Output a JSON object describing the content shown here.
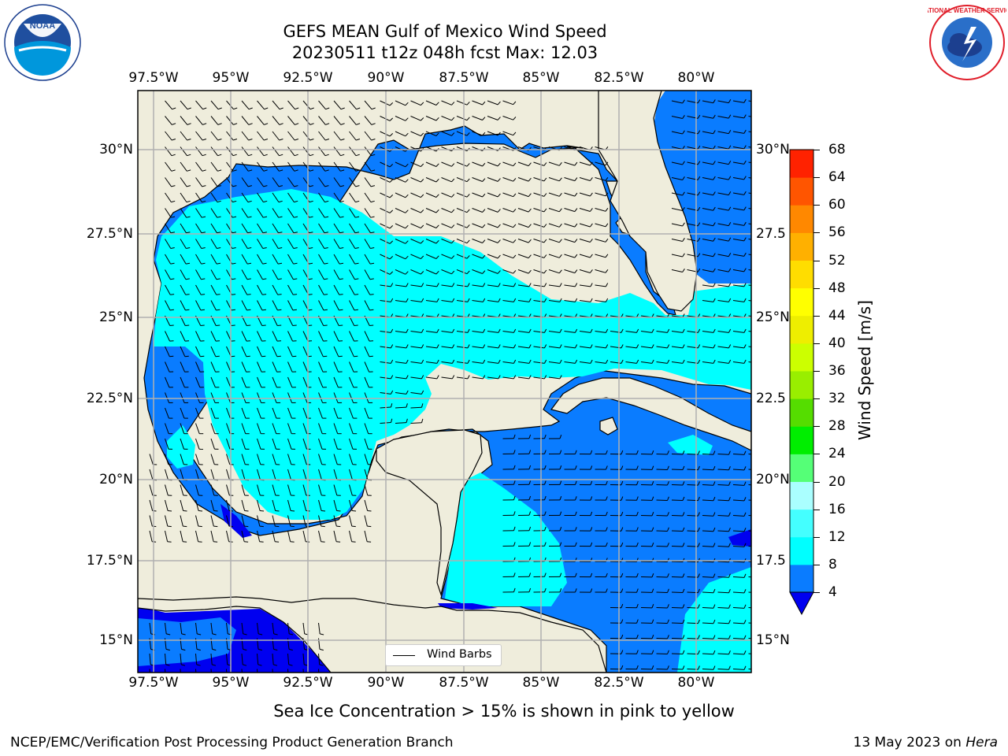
{
  "title": {
    "line1": "GEFS MEAN Gulf of Mexico Wind Speed",
    "line2": "20230511 t12z 048h fcst   Max: 12.03"
  },
  "logos": {
    "left": {
      "name": "NOAA",
      "ring_text": "NATIONAL OCEANIC AND ATMOSPHERIC ADMINISTRATION · U.S. DEPARTMENT OF COMMERCE"
    },
    "right": {
      "name": "NATIONAL WEATHER SERVICE"
    }
  },
  "map": {
    "lon_labels": [
      "97.5°W",
      "95°W",
      "92.5°W",
      "90°W",
      "87.5°W",
      "85°W",
      "82.5°W",
      "80°W"
    ],
    "lat_labels_left": [
      "30°N",
      "27.5°N",
      "25°N",
      "22.5°N",
      "20°N",
      "17.5°N",
      "15°N"
    ],
    "lat_labels_right": [
      "30°N",
      "27.5",
      "25°N",
      "22.5",
      "20°N",
      "17.5",
      "15°N"
    ],
    "legend_label": "Wind Barbs",
    "colors": {
      "land": "#efeddc",
      "band_4_8": "#0a7cff",
      "band_8_12": "#00ffff",
      "below_4": "#0000f0",
      "gridline": "#b0b0b0"
    }
  },
  "colorbar": {
    "label": "Wind Speed [m/s]",
    "ticks": [
      "4",
      "8",
      "12",
      "16",
      "20",
      "24",
      "28",
      "32",
      "36",
      "40",
      "44",
      "48",
      "52",
      "56",
      "60",
      "64",
      "68"
    ],
    "colors": [
      "#0a7cff",
      "#00ffff",
      "#44ffff",
      "#aaffff",
      "#55ff77",
      "#00ee00",
      "#55dd00",
      "#99ee00",
      "#ccff00",
      "#eeee00",
      "#ffff00",
      "#ffdd00",
      "#ffb000",
      "#ff8800",
      "#ff5500",
      "#ff2200"
    ],
    "extend_color": "#0000f0"
  },
  "note": "Sea Ice Concentration > 15% is shown in pink to yellow",
  "footer": {
    "left": "NCEP/EMC/Verification Post Processing Product Generation Branch",
    "right_prefix": "13 May 2023 on ",
    "right_host": "Hera"
  }
}
